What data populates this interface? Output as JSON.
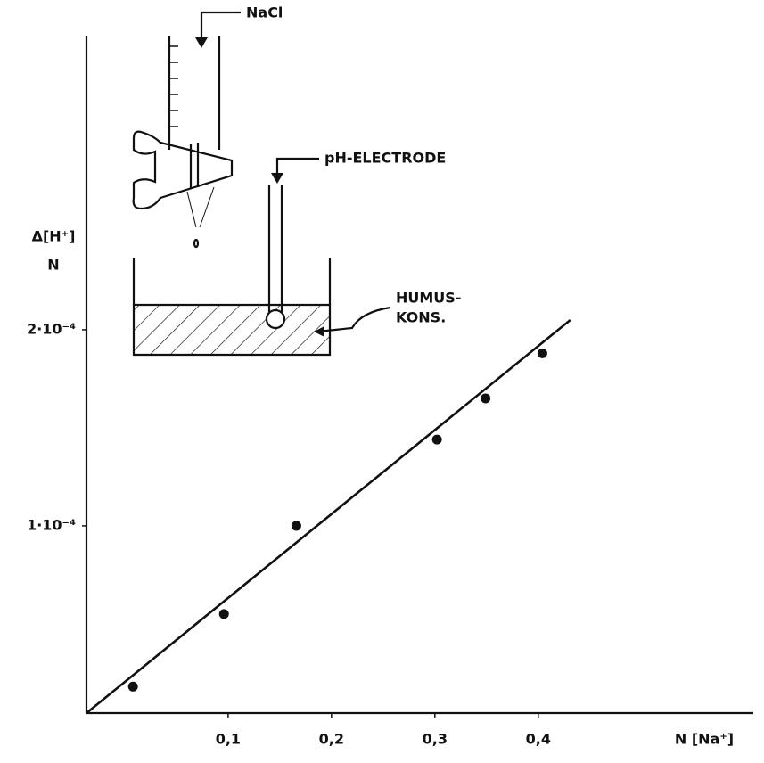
{
  "chart_data": {
    "type": "scatter",
    "x_label": "N [Na⁺]",
    "y_label": [
      "Δ[H⁺]",
      "N"
    ],
    "x": [
      0.008,
      0.096,
      0.166,
      0.302,
      0.349,
      0.404
    ],
    "values": [
      1.8e-05,
      5.5e-05,
      0.0001,
      0.000144,
      0.000165,
      0.000188
    ],
    "color": "#111111",
    "fit_line": {
      "x": [
        -0.037,
        0.431
      ],
      "values": [
        4.5e-06,
        0.000205
      ]
    },
    "xlim": [
      -0.037,
      0.608
    ],
    "ylim": [
      4.5e-06,
      0.00035
    ],
    "xticks": [
      {
        "value": 0.1,
        "label": "0,1"
      },
      {
        "value": 0.2,
        "label": "0,2"
      },
      {
        "value": 0.3,
        "label": "0,3"
      },
      {
        "value": 0.4,
        "label": "0,4"
      }
    ],
    "yticks": [
      {
        "value": 0.0001,
        "label": "1·10⁻⁴"
      },
      {
        "value": 0.0002,
        "label": "2·10⁻⁴"
      }
    ],
    "annotations": [
      "NaCl",
      "pH-ELECTRODE",
      "HUMUS-",
      "KONS."
    ]
  }
}
